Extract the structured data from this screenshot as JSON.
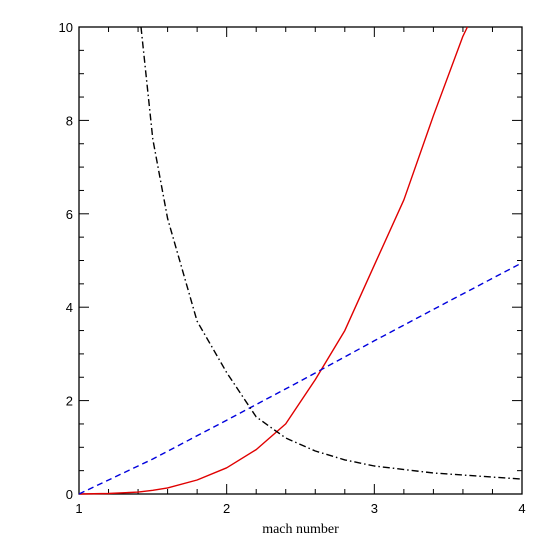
{
  "chart_data": {
    "type": "line",
    "xlabel": "mach number",
    "ylabel": "",
    "xlim": [
      1,
      4
    ],
    "ylim": [
      0,
      10
    ],
    "xticks": [
      "1",
      "2",
      "3",
      "4"
    ],
    "yticks": [
      "0",
      "2",
      "4",
      "6",
      "8",
      "10"
    ],
    "grid": false,
    "legend": "none",
    "series": [
      {
        "color": "#e00000",
        "style": "solid",
        "x": [
          1.0,
          1.2,
          1.4,
          1.5,
          1.6,
          1.8,
          2.0,
          2.2,
          2.4,
          2.6,
          2.8,
          3.0,
          3.2,
          3.4,
          3.6,
          3.63
        ],
        "y": [
          0.0,
          0.01,
          0.04,
          0.08,
          0.13,
          0.3,
          0.56,
          0.95,
          1.5,
          2.45,
          3.5,
          4.9,
          6.3,
          8.1,
          9.8,
          10.0
        ]
      },
      {
        "color": "#0000dd",
        "style": "dashed",
        "x": [
          1.0,
          1.5,
          2.0,
          2.5,
          3.0,
          3.5,
          4.0
        ],
        "y": [
          0.0,
          0.75,
          1.58,
          2.42,
          3.28,
          4.12,
          4.95
        ]
      },
      {
        "color": "#000000",
        "style": "dash-dot",
        "x": [
          1.42,
          1.5,
          1.6,
          1.8,
          2.0,
          2.2,
          2.4,
          2.6,
          2.8,
          3.0,
          3.4,
          4.0
        ],
        "y": [
          10.0,
          7.6,
          5.9,
          3.7,
          2.6,
          1.65,
          1.2,
          0.92,
          0.73,
          0.6,
          0.45,
          0.32
        ]
      }
    ]
  }
}
